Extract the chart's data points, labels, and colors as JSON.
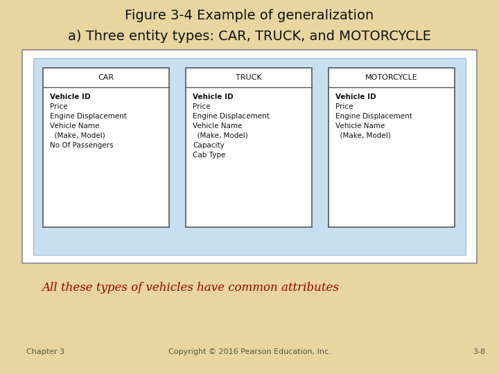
{
  "title": "Figure 3-4 Example of generalization",
  "subtitle": "a) Three entity types: CAR, TRUCK, and MOTORCYCLE",
  "bg_color": "#E8D5A0",
  "outer_box_bg": "#FFFFFF",
  "outer_box_border": "#888888",
  "inner_box_bg": "#C8DFF0",
  "inner_box_border": "#A0C0E0",
  "entity_box_bg": "#FFFFFF",
  "entity_border_color": "#555555",
  "header_line_color": "#555555",
  "entities": [
    {
      "name": "CAR",
      "fields_bold": [
        "Vehicle ID"
      ],
      "fields_normal": [
        "Price",
        "Engine Displacement",
        "Vehicle Name",
        "  (Make, Model)",
        "No Of Passengers"
      ]
    },
    {
      "name": "TRUCK",
      "fields_bold": [
        "Vehicle ID"
      ],
      "fields_normal": [
        "Price",
        "Engine Displacement",
        "Vehicle Name",
        "  (Make, Model)",
        "Capacity",
        "Cab Type"
      ]
    },
    {
      "name": "MOTORCYCLE",
      "fields_bold": [
        "Vehicle ID"
      ],
      "fields_normal": [
        "Price",
        "Engine Displacement",
        "Vehicle Name",
        "  (Make, Model)"
      ]
    }
  ],
  "note_text": "All these types of vehicles have common attributes",
  "note_color": "#990000",
  "footer_left": "Chapter 3",
  "footer_center": "Copyright © 2016 Pearson Education, Inc.",
  "footer_right": "3-8",
  "footer_color": "#555544",
  "title_fontsize": 14,
  "subtitle_fontsize": 14,
  "entity_name_fontsize": 8,
  "field_fontsize": 7.5,
  "note_fontsize": 12,
  "footer_fontsize": 8
}
